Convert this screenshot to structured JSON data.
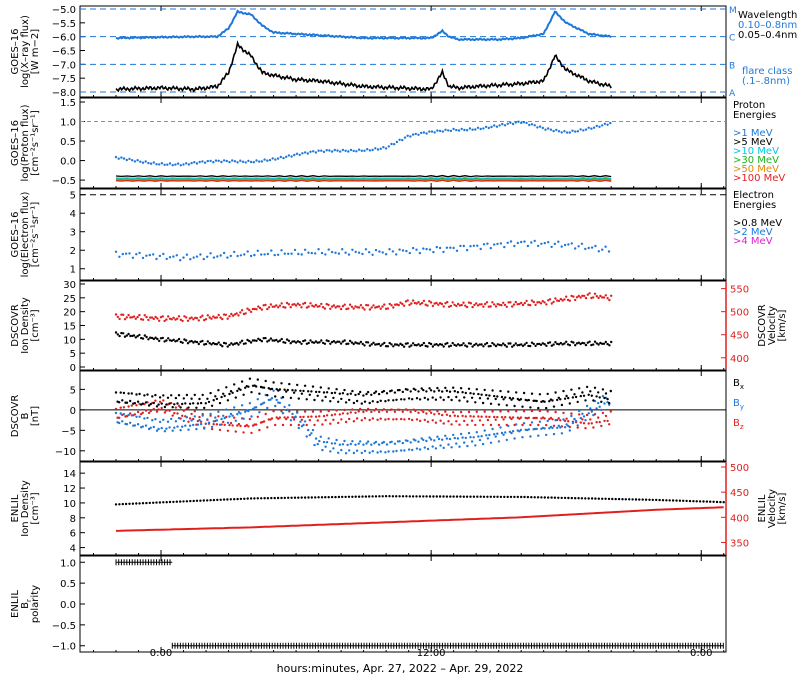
{
  "figure": {
    "time_axis_label": "hours:minutes, Apr. 27, 2022 – Apr. 29, 2022",
    "time_ticks": [
      "0:00",
      "12:00",
      "0:00"
    ]
  },
  "colors": {
    "black": "#000000",
    "blue": "#1f78d8",
    "red": "#e02020",
    "cyan": "#00c8e6",
    "green": "#20b020",
    "orange": "#e08a00",
    "magenta": "#e020d0"
  },
  "chart_data": [
    {
      "type": "line",
      "panel": "goes-xray",
      "ylabel": [
        "GOES–16",
        "log(X–ray flux)",
        "[W m−2]"
      ],
      "ylim": [
        -8.0,
        -5.0
      ],
      "yticks": [
        "−5.0",
        "−5.5",
        "−6.0",
        "−6.5",
        "−7.0",
        "−7.5",
        "−8.0"
      ],
      "legend_title": "Wavelength",
      "legend": [
        "0.10–0.8nm",
        "0.05–0.4nm"
      ],
      "flare_class_label": "flare class",
      "flare_class_range": "(.1–.8nm)",
      "flare_classes": [
        {
          "name": "A",
          "level": -8.0
        },
        {
          "name": "B",
          "level": -7.0
        },
        {
          "name": "C",
          "level": -6.0
        },
        {
          "name": "M",
          "level": -5.0
        }
      ],
      "series": [
        {
          "name": "0.10–0.8nm",
          "x": [
            -3,
            -1,
            0.5,
            1.5,
            2.0,
            2.4,
            3.0,
            3.5,
            4.0,
            5.0,
            6.0,
            7.0,
            8.0,
            9.5,
            11.0,
            11.5,
            11.8,
            12.2,
            13.0,
            14.0,
            15.0,
            16.0,
            16.5,
            17.0,
            18.0,
            19.0
          ],
          "y": [
            -6.05,
            -6.02,
            -6.0,
            -6.0,
            -5.7,
            -5.1,
            -5.2,
            -5.6,
            -5.85,
            -5.9,
            -5.95,
            -6.0,
            -6.05,
            -6.05,
            -6.05,
            -5.8,
            -6.0,
            -6.1,
            -6.1,
            -6.1,
            -6.05,
            -5.9,
            -5.1,
            -5.5,
            -5.9,
            -6.0
          ]
        },
        {
          "name": "0.05–0.4nm",
          "x": [
            -3,
            -1,
            0.5,
            1.5,
            2.0,
            2.4,
            3.0,
            3.5,
            4.0,
            5.0,
            6.0,
            7.0,
            8.0,
            9.5,
            11.0,
            11.5,
            11.8,
            12.2,
            13.0,
            14.0,
            15.0,
            16.0,
            16.5,
            17.0,
            18.0,
            19.0
          ],
          "y": [
            -7.9,
            -7.85,
            -7.9,
            -7.8,
            -7.3,
            -6.3,
            -6.7,
            -7.3,
            -7.4,
            -7.55,
            -7.6,
            -7.7,
            -7.8,
            -7.85,
            -7.9,
            -7.3,
            -7.8,
            -7.85,
            -7.8,
            -7.75,
            -7.7,
            -7.6,
            -6.7,
            -7.2,
            -7.6,
            -7.8
          ]
        }
      ]
    },
    {
      "type": "scatter",
      "panel": "goes-protons",
      "ylabel": [
        "GOES–16",
        "log(Proton flux)",
        "[cm⁻²s⁻¹sr⁻¹]"
      ],
      "ylim": [
        -0.6,
        1.5
      ],
      "yticks": [
        "1.5",
        "1.0",
        "0.5",
        "0.0",
        "−0.5"
      ],
      "legend_title": [
        "Proton",
        "Energies"
      ],
      "legend": [
        ">1 MeV",
        ">5 MeV",
        ">10 MeV",
        ">30 MeV",
        ">50 MeV",
        ">100 MeV"
      ],
      "series": [
        {
          "name": ">1 MeV",
          "x": [
            -3,
            0,
            3,
            6,
            9,
            10,
            12,
            14,
            15,
            16,
            17,
            19
          ],
          "y": [
            0.05,
            -0.1,
            0.0,
            0.2,
            0.35,
            0.6,
            0.8,
            0.9,
            0.95,
            0.8,
            0.75,
            0.95
          ]
        },
        {
          "name": ">5 MeV",
          "x": [
            -3,
            19
          ],
          "y": [
            -0.4,
            -0.4
          ]
        },
        {
          "name": ">10 MeV",
          "x": [
            -3,
            19
          ],
          "y": [
            -0.45,
            -0.45
          ]
        },
        {
          "name": ">30 MeV",
          "x": [
            -3,
            19
          ],
          "y": [
            -0.48,
            -0.48
          ]
        },
        {
          "name": ">50 MeV",
          "x": [
            -3,
            19
          ],
          "y": [
            -0.5,
            -0.5
          ]
        },
        {
          "name": ">100 MeV",
          "x": [
            -3,
            19
          ],
          "y": [
            -0.52,
            -0.52
          ]
        }
      ],
      "reference_level": 1.0
    },
    {
      "type": "scatter",
      "panel": "goes-electrons",
      "ylabel": [
        "GOES–16",
        "log(Electron flux)",
        "[cm⁻²s⁻¹sr⁻¹]"
      ],
      "ylim": [
        0.5,
        5.2
      ],
      "yticks": [
        "5",
        "4",
        "3",
        "2",
        "1"
      ],
      "legend_title": [
        "Electron",
        "Energies"
      ],
      "legend": [
        ">0.8 MeV",
        ">2 MeV",
        ">4 MeV"
      ],
      "series": [
        {
          "name": ">0.8 MeV",
          "x": [
            -3,
            19
          ],
          "y": [
            5.0,
            5.0
          ]
        },
        {
          "name": ">2 MeV",
          "x": [
            -3,
            0,
            3,
            6,
            9,
            12,
            15,
            17,
            19
          ],
          "y": [
            1.8,
            1.6,
            1.8,
            1.9,
            1.9,
            2.1,
            2.4,
            2.3,
            2.0
          ]
        },
        {
          "name": ">4 MeV",
          "x": [],
          "y": []
        }
      ]
    },
    {
      "type": "scatter",
      "panel": "dscovr-plasma",
      "ylabel": [
        "DSCOVR",
        "Ion Density",
        "[cm⁻³]"
      ],
      "ylim": [
        0,
        30
      ],
      "yticks": [
        "30",
        "25",
        "20",
        "15",
        "10",
        "5",
        "0"
      ],
      "ylabel_right": [
        "DSCOVR",
        "Velocity",
        "[km/s]"
      ],
      "ylim_right": [
        380,
        560
      ],
      "yticks_right": [
        "550",
        "500",
        "450",
        "400"
      ],
      "series": [
        {
          "name": "Ion Density",
          "x": [
            -3,
            -1,
            0.5,
            2,
            3.5,
            5,
            7,
            9,
            11,
            13,
            15,
            17,
            19
          ],
          "y": [
            12,
            10,
            9,
            8,
            10,
            9,
            9,
            8,
            8,
            8,
            8,
            8.5,
            8.5
          ]
        },
        {
          "name": "Velocity",
          "x": [
            -3,
            -1,
            0.5,
            2,
            3.5,
            5,
            7,
            9,
            10,
            12,
            14,
            16,
            18,
            19
          ],
          "y": [
            490,
            485,
            485,
            490,
            510,
            515,
            510,
            510,
            520,
            515,
            515,
            520,
            535,
            530
          ]
        }
      ]
    },
    {
      "type": "scatter",
      "panel": "dscovr-field",
      "ylabel": [
        "DSCOVR",
        "B",
        "[nT]"
      ],
      "ylim": [
        -12,
        9
      ],
      "yticks": [
        "5",
        "0",
        "−5",
        "−10"
      ],
      "legend": [
        "B",
        "B",
        "B"
      ],
      "legend_subscripts": [
        "x",
        "y",
        "z"
      ],
      "series": [
        {
          "name": "Bx",
          "x": [
            -3,
            -1,
            1,
            3,
            4,
            6,
            8,
            10,
            12,
            14,
            16,
            18,
            19
          ],
          "y": [
            3,
            2,
            2,
            6,
            5,
            4,
            3,
            4,
            4,
            3,
            2,
            4,
            3
          ]
        },
        {
          "name": "By",
          "x": [
            -3,
            -1,
            1,
            3,
            4,
            5,
            6,
            7,
            9,
            11,
            13,
            15,
            17,
            19
          ],
          "y": [
            -2,
            -4,
            -3,
            0,
            3,
            -2,
            -8,
            -9,
            -9,
            -8,
            -7,
            -5,
            -4,
            3
          ]
        },
        {
          "name": "Bz",
          "x": [
            -3,
            -1,
            1,
            3,
            4,
            6,
            8,
            10,
            12,
            14,
            16,
            18,
            19
          ],
          "y": [
            -1,
            1,
            -3,
            -4,
            -2,
            -2,
            -1,
            -1,
            -2,
            -2,
            -2,
            -3,
            -2
          ]
        }
      ]
    },
    {
      "type": "line",
      "panel": "enlil-plasma",
      "ylabel": [
        "ENLIL",
        "Ion Density",
        "[cm⁻³]"
      ],
      "ylim": [
        3,
        15.5
      ],
      "yticks": [
        "14",
        "12",
        "10",
        "8",
        "6",
        "4"
      ],
      "ylabel_right": [
        "ENLIL",
        "Velocity",
        "[km/s]"
      ],
      "ylim_right": [
        325,
        510
      ],
      "yticks_right": [
        "500",
        "450",
        "400",
        "350"
      ],
      "series": [
        {
          "name": "Ion Density",
          "x": [
            -3,
            3,
            9,
            15,
            21,
            24
          ],
          "y": [
            9.8,
            10.6,
            10.9,
            10.8,
            10.4,
            10.1
          ]
        },
        {
          "name": "Velocity",
          "x": [
            -3,
            3,
            9,
            15,
            21,
            24
          ],
          "y": [
            373,
            380,
            390,
            400,
            415,
            420
          ]
        }
      ]
    },
    {
      "type": "line",
      "panel": "enlil-polarity",
      "ylabel": [
        "ENLIL",
        "B",
        "polarity"
      ],
      "ylabel_subscript": "r",
      "ylim": [
        -1.15,
        1.15
      ],
      "yticks": [
        "1.0",
        "0.5",
        "0.0",
        "−0.5",
        "−1.0"
      ],
      "series": [
        {
          "name": "Br polarity",
          "x": [
            -3,
            -0.5,
            -0.5,
            24
          ],
          "y": [
            1,
            1,
            -1,
            -1
          ]
        }
      ]
    }
  ]
}
